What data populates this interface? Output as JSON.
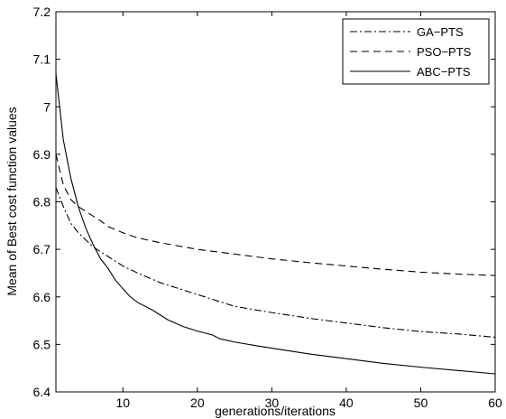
{
  "chart_data": {
    "type": "line",
    "xlabel": "generations/iterations",
    "ylabel": "Mean of Best cost function values",
    "xlim": [
      1,
      60
    ],
    "ylim": [
      6.4,
      7.2
    ],
    "xticks": [
      10,
      20,
      30,
      40,
      50,
      60
    ],
    "yticks": [
      6.4,
      6.5,
      6.6,
      6.7,
      6.8,
      6.9,
      7.0,
      7.1,
      7.2
    ],
    "xtick_labels": [
      "10",
      "20",
      "30",
      "40",
      "50",
      "60"
    ],
    "ytick_labels": [
      "6.4",
      "6.5",
      "6.6",
      "6.7",
      "6.8",
      "6.9",
      "7",
      "7.1",
      "7.2"
    ],
    "grid": false,
    "legend": "top-right",
    "series": [
      {
        "name": "GA−PTS",
        "style": "dashdot",
        "x": [
          1,
          2,
          3,
          4,
          5,
          6,
          7,
          8,
          10,
          12,
          15,
          17,
          20,
          23,
          25,
          30,
          35,
          40,
          45,
          50,
          55,
          60
        ],
        "y": [
          6.83,
          6.79,
          6.755,
          6.735,
          6.72,
          6.705,
          6.695,
          6.685,
          6.665,
          6.65,
          6.63,
          6.62,
          6.605,
          6.59,
          6.58,
          6.567,
          6.555,
          6.545,
          6.535,
          6.527,
          6.522,
          6.515
        ]
      },
      {
        "name": "PSO−PTS",
        "style": "dashed",
        "x": [
          1,
          2,
          3,
          4,
          5,
          6,
          7,
          8,
          10,
          12,
          15,
          20,
          25,
          30,
          35,
          40,
          45,
          50,
          55,
          60
        ],
        "y": [
          6.9,
          6.835,
          6.805,
          6.79,
          6.78,
          6.77,
          6.76,
          6.748,
          6.735,
          6.724,
          6.714,
          6.7,
          6.69,
          6.68,
          6.672,
          6.665,
          6.658,
          6.652,
          6.648,
          6.645
        ]
      },
      {
        "name": "ABC−PTS",
        "style": "solid",
        "x": [
          1,
          2,
          3,
          4,
          5,
          6,
          7,
          8,
          9,
          10,
          11,
          12,
          14,
          16,
          18,
          20,
          22,
          23,
          25,
          28,
          30,
          35,
          40,
          45,
          50,
          55,
          60
        ],
        "y": [
          7.07,
          6.93,
          6.85,
          6.79,
          6.745,
          6.71,
          6.68,
          6.66,
          6.635,
          6.617,
          6.6,
          6.588,
          6.572,
          6.552,
          6.538,
          6.528,
          6.52,
          6.512,
          6.505,
          6.497,
          6.492,
          6.48,
          6.47,
          6.46,
          6.452,
          6.445,
          6.438
        ]
      }
    ]
  }
}
